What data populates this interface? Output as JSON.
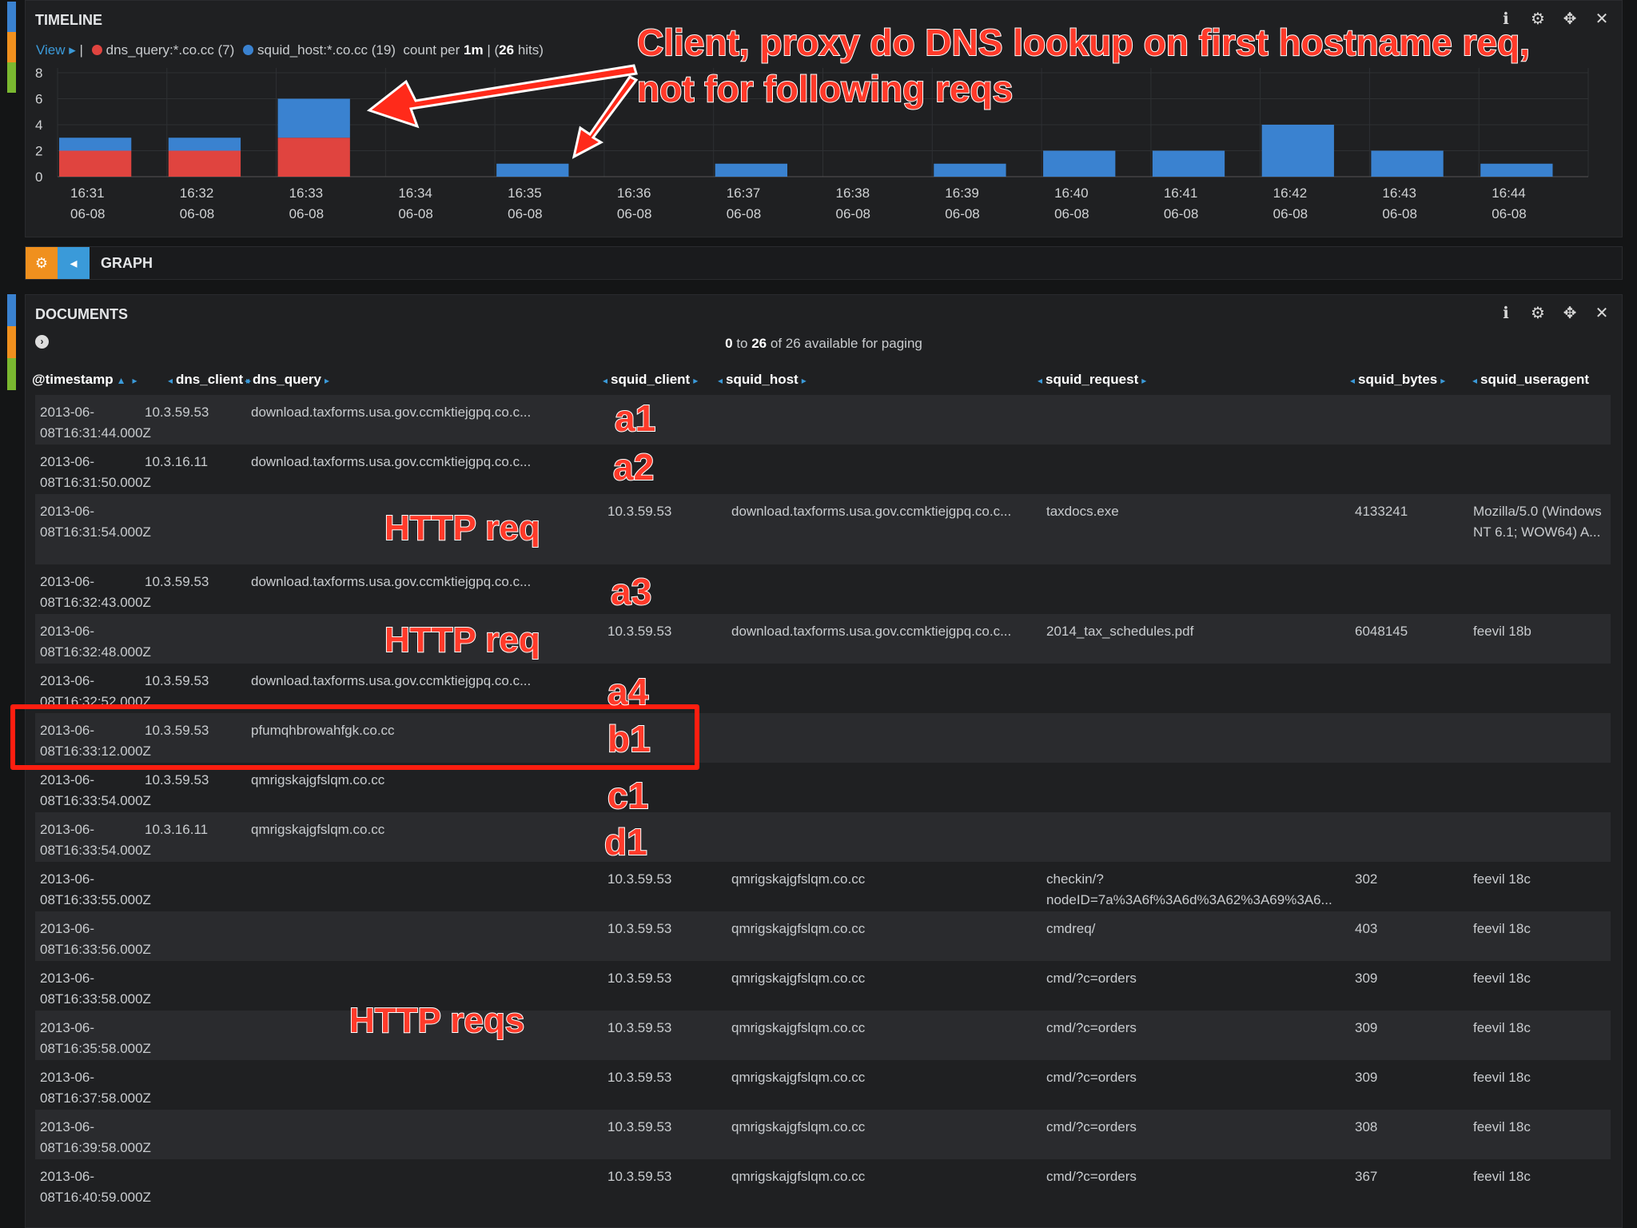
{
  "timeline": {
    "title": "TIMELINE",
    "view_label": "View ▸",
    "legend": [
      {
        "label": "dns_query:*.co.cc (7)",
        "color": "#e0443f"
      },
      {
        "label": "squid_host:*.co.cc (19)",
        "color": "#3a82d0"
      }
    ],
    "count_text": "count per",
    "interval": "1m",
    "hits": "26",
    "hits_suffix": "hits)",
    "icons": [
      "info-icon",
      "gear-icon",
      "move-icon",
      "close-icon"
    ]
  },
  "chart_data": {
    "type": "bar",
    "stacked": true,
    "categories": [
      "16:31",
      "16:32",
      "16:33",
      "16:34",
      "16:35",
      "16:36",
      "16:37",
      "16:38",
      "16:39",
      "16:40",
      "16:41",
      "16:42",
      "16:43",
      "16:44"
    ],
    "date_label": "06-08",
    "series": [
      {
        "name": "dns_query:*.co.cc",
        "color": "#e0443f",
        "values": [
          2,
          2,
          3,
          0,
          0,
          0,
          0,
          0,
          0,
          0,
          0,
          0,
          0,
          0
        ]
      },
      {
        "name": "squid_host:*.co.cc",
        "color": "#3a82d0",
        "values": [
          1,
          1,
          3,
          0,
          1,
          0,
          1,
          0,
          1,
          2,
          2,
          4,
          2,
          1
        ]
      }
    ],
    "ylim": [
      0,
      8
    ],
    "yticks": [
      0,
      2,
      4,
      6,
      8
    ],
    "grid": true,
    "xlabel": "",
    "ylabel": ""
  },
  "graph": {
    "title": "GRAPH"
  },
  "documents": {
    "title": "DOCUMENTS",
    "paging_from": "0",
    "paging_to": "26",
    "paging_text": "of 26 available for paging",
    "columns": [
      "@timestamp",
      "dns_client",
      "dns_query",
      "squid_client",
      "squid_host",
      "squid_request",
      "squid_bytes",
      "squid_useragent"
    ],
    "rows": [
      {
        "ts1": "2013-06-",
        "ts2": "08T16:31:44.000Z",
        "dns_client": "10.3.59.53",
        "dns_query": "download.taxforms.usa.gov.ccmktiejgpq.co.c...",
        "squid_client": "",
        "squid_host": "",
        "squid_request": "",
        "squid_bytes": "",
        "squid_useragent": ""
      },
      {
        "ts1": "2013-06-",
        "ts2": "08T16:31:50.000Z",
        "dns_client": "10.3.16.11",
        "dns_query": "download.taxforms.usa.gov.ccmktiejgpq.co.c...",
        "squid_client": "",
        "squid_host": "",
        "squid_request": "",
        "squid_bytes": "",
        "squid_useragent": ""
      },
      {
        "ts1": "2013-06-",
        "ts2": "08T16:31:54.000Z",
        "dns_client": "",
        "dns_query": "",
        "squid_client": "10.3.59.53",
        "squid_host": "download.taxforms.usa.gov.ccmktiejgpq.co.c...",
        "squid_request": "taxdocs.exe",
        "squid_bytes": "4133241",
        "squid_useragent": "Mozilla/5.0 (Windows NT 6.1; WOW64) A..."
      },
      {
        "ts1": "2013-06-",
        "ts2": "08T16:32:43.000Z",
        "dns_client": "10.3.59.53",
        "dns_query": "download.taxforms.usa.gov.ccmktiejgpq.co.c...",
        "squid_client": "",
        "squid_host": "",
        "squid_request": "",
        "squid_bytes": "",
        "squid_useragent": ""
      },
      {
        "ts1": "2013-06-",
        "ts2": "08T16:32:48.000Z",
        "dns_client": "",
        "dns_query": "",
        "squid_client": "10.3.59.53",
        "squid_host": "download.taxforms.usa.gov.ccmktiejgpq.co.c...",
        "squid_request": "2014_tax_schedules.pdf",
        "squid_bytes": "6048145",
        "squid_useragent": "feevil 18b"
      },
      {
        "ts1": "2013-06-",
        "ts2": "08T16:32:52.000Z",
        "dns_client": "10.3.59.53",
        "dns_query": "download.taxforms.usa.gov.ccmktiejgpq.co.c...",
        "squid_client": "",
        "squid_host": "",
        "squid_request": "",
        "squid_bytes": "",
        "squid_useragent": ""
      },
      {
        "ts1": "2013-06-",
        "ts2": "08T16:33:12.000Z",
        "dns_client": "10.3.59.53",
        "dns_query": "pfumqhbrowahfgk.co.cc",
        "squid_client": "",
        "squid_host": "",
        "squid_request": "",
        "squid_bytes": "",
        "squid_useragent": ""
      },
      {
        "ts1": "2013-06-",
        "ts2": "08T16:33:54.000Z",
        "dns_client": "10.3.59.53",
        "dns_query": "qmrigskajgfslqm.co.cc",
        "squid_client": "",
        "squid_host": "",
        "squid_request": "",
        "squid_bytes": "",
        "squid_useragent": ""
      },
      {
        "ts1": "2013-06-",
        "ts2": "08T16:33:54.000Z",
        "dns_client": "10.3.16.11",
        "dns_query": "qmrigskajgfslqm.co.cc",
        "squid_client": "",
        "squid_host": "",
        "squid_request": "",
        "squid_bytes": "",
        "squid_useragent": ""
      },
      {
        "ts1": "2013-06-",
        "ts2": "08T16:33:55.000Z",
        "dns_client": "",
        "dns_query": "",
        "squid_client": "10.3.59.53",
        "squid_host": "qmrigskajgfslqm.co.cc",
        "squid_request": "checkin/? nodeID=7a%3A6f%3A6d%3A62%3A69%3A6...",
        "squid_bytes": "302",
        "squid_useragent": "feevil 18c"
      },
      {
        "ts1": "2013-06-",
        "ts2": "08T16:33:56.000Z",
        "dns_client": "",
        "dns_query": "",
        "squid_client": "10.3.59.53",
        "squid_host": "qmrigskajgfslqm.co.cc",
        "squid_request": "cmdreq/",
        "squid_bytes": "403",
        "squid_useragent": "feevil 18c"
      },
      {
        "ts1": "2013-06-",
        "ts2": "08T16:33:58.000Z",
        "dns_client": "",
        "dns_query": "",
        "squid_client": "10.3.59.53",
        "squid_host": "qmrigskajgfslqm.co.cc",
        "squid_request": "cmd/?c=orders",
        "squid_bytes": "309",
        "squid_useragent": "feevil 18c"
      },
      {
        "ts1": "2013-06-",
        "ts2": "08T16:35:58.000Z",
        "dns_client": "",
        "dns_query": "",
        "squid_client": "10.3.59.53",
        "squid_host": "qmrigskajgfslqm.co.cc",
        "squid_request": "cmd/?c=orders",
        "squid_bytes": "309",
        "squid_useragent": "feevil 18c"
      },
      {
        "ts1": "2013-06-",
        "ts2": "08T16:37:58.000Z",
        "dns_client": "",
        "dns_query": "",
        "squid_client": "10.3.59.53",
        "squid_host": "qmrigskajgfslqm.co.cc",
        "squid_request": "cmd/?c=orders",
        "squid_bytes": "309",
        "squid_useragent": "feevil 18c"
      },
      {
        "ts1": "2013-06-",
        "ts2": "08T16:39:58.000Z",
        "dns_client": "",
        "dns_query": "",
        "squid_client": "10.3.59.53",
        "squid_host": "qmrigskajgfslqm.co.cc",
        "squid_request": "cmd/?c=orders",
        "squid_bytes": "308",
        "squid_useragent": "feevil 18c"
      },
      {
        "ts1": "2013-06-",
        "ts2": "08T16:40:59.000Z",
        "dns_client": "",
        "dns_query": "",
        "squid_client": "10.3.59.53",
        "squid_host": "qmrigskajgfslqm.co.cc",
        "squid_request": "cmd/?c=orders",
        "squid_bytes": "367",
        "squid_useragent": "feevil 18c"
      }
    ]
  },
  "annotations": {
    "callout_line1": "Client, proxy do DNS lookup on first hostname req,",
    "callout_line2": "not for following reqs",
    "a1": "a1",
    "a2": "a2",
    "a3": "a3",
    "a4": "a4",
    "b1": "b1",
    "c1": "c1",
    "d1": "d1",
    "http_req": "HTTP req",
    "http_reqs": "HTTP reqs",
    "color": "#ff3a2a"
  }
}
